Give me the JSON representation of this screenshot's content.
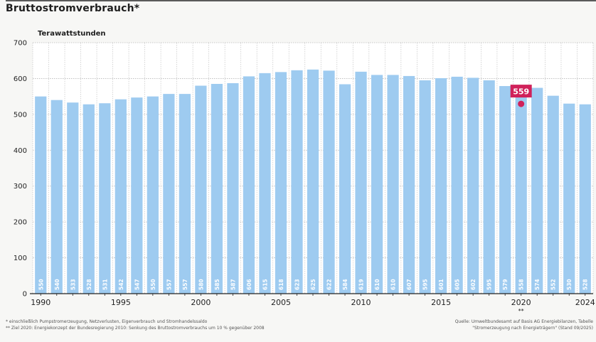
{
  "title": "Bruttostromverbrauch*",
  "chart_data": {
    "type": "bar",
    "ylabel": "Terawattstunden",
    "ylim": [
      0,
      700
    ],
    "yticks": [
      0,
      100,
      200,
      300,
      400,
      500,
      600,
      700
    ],
    "grid": true,
    "categories": [
      "1990",
      "1991",
      "1992",
      "1993",
      "1994",
      "1995",
      "1996",
      "1997",
      "1998",
      "1999",
      "2000",
      "2001",
      "2002",
      "2003",
      "2004",
      "2005",
      "2006",
      "2007",
      "2008",
      "2009",
      "2010",
      "2011",
      "2012",
      "2013",
      "2014",
      "2015",
      "2016",
      "2017",
      "2018",
      "2019",
      "2020",
      "2021",
      "2022",
      "2023",
      "2024"
    ],
    "values": [
      550,
      540,
      533,
      528,
      531,
      542,
      547,
      550,
      557,
      557,
      580,
      585,
      587,
      606,
      615,
      618,
      623,
      625,
      622,
      584,
      619,
      610,
      610,
      607,
      595,
      601,
      605,
      602,
      595,
      579,
      558,
      574,
      552,
      530,
      528
    ],
    "value_labels": [
      "550",
      "540",
      "533",
      "528",
      "531",
      "542",
      "547",
      "550",
      "557",
      "557",
      "580",
      "585",
      "587",
      "606",
      "615",
      "618",
      "623",
      "625",
      "622",
      "584",
      "619",
      "610",
      "610",
      "607",
      "595",
      "601",
      "605",
      "602",
      "595",
      "579",
      "558",
      "574",
      "552",
      "530",
      "528"
    ],
    "xtick_labels": [
      "1990",
      "1995",
      "2000",
      "2005",
      "2010",
      "2015",
      "2020",
      "2024"
    ],
    "xtick_years": [
      1990,
      1995,
      2000,
      2005,
      2010,
      2015,
      2020,
      2024
    ],
    "target": {
      "year": "2020",
      "value": 559,
      "label": "559",
      "footnote_mark": "**"
    },
    "bar_color": "#9ecbf0",
    "target_color": "#d0215a"
  },
  "footnotes": {
    "note1": "* einschließlich Pumpstromerzeugung, Netzverlusten, Eigenverbrauch und Stromhandelssaldo",
    "note2": "** Ziel 2020: Energiekonzept der Bundesregierung 2010: Senkung des Bruttostromverbrauchs um 10 % gegenüber 2008",
    "source1": "Quelle: Umweltbundesamt auf Basis AG Energiebilanzen, Tabelle",
    "source2": "\"Stromerzeugung nach Energieträgern\" (Stand 09/2025)"
  }
}
